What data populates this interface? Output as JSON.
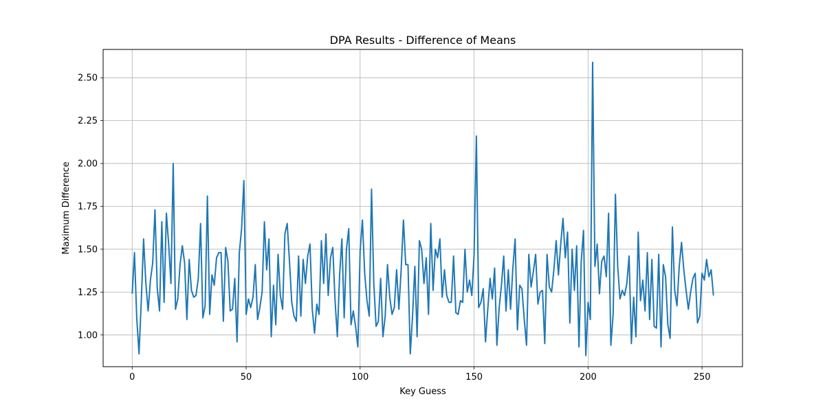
{
  "chart_data": {
    "type": "line",
    "title": "DPA Results - Difference of Means",
    "xlabel": "Key Guess",
    "ylabel": "Maximum Difference",
    "xlim": [
      -12.75,
      267.75
    ],
    "ylim": [
      0.815,
      2.665
    ],
    "xticks": [
      0,
      50,
      100,
      150,
      200,
      250
    ],
    "yticks": [
      1.0,
      1.25,
      1.5,
      1.75,
      2.0,
      2.25,
      2.5
    ],
    "xtick_labels": [
      "0",
      "50",
      "100",
      "150",
      "200",
      "250"
    ],
    "ytick_labels": [
      "1.00",
      "1.25",
      "1.50",
      "1.75",
      "2.00",
      "2.25",
      "2.50"
    ],
    "grid": true,
    "series": [
      {
        "color": "#1f77b4",
        "x_start": 0,
        "values": [
          1.24,
          1.48,
          1.1,
          0.89,
          1.2,
          1.56,
          1.3,
          1.14,
          1.32,
          1.42,
          1.73,
          1.27,
          1.14,
          1.66,
          1.19,
          1.71,
          1.53,
          1.3,
          2.0,
          1.15,
          1.21,
          1.41,
          1.52,
          1.42,
          1.09,
          1.44,
          1.26,
          1.22,
          1.23,
          1.33,
          1.65,
          1.1,
          1.17,
          1.81,
          1.12,
          1.35,
          1.29,
          1.45,
          1.48,
          1.48,
          1.08,
          1.51,
          1.43,
          1.14,
          1.15,
          1.33,
          0.96,
          1.48,
          1.62,
          1.9,
          1.12,
          1.21,
          1.16,
          1.22,
          1.41,
          1.09,
          1.16,
          1.25,
          1.66,
          1.38,
          1.56,
          0.99,
          1.29,
          1.06,
          1.47,
          1.23,
          1.15,
          1.59,
          1.65,
          1.43,
          1.19,
          1.11,
          1.08,
          1.46,
          1.11,
          1.44,
          1.3,
          1.46,
          1.53,
          1.15,
          1.01,
          1.18,
          1.12,
          1.55,
          1.3,
          1.59,
          1.23,
          1.45,
          1.51,
          1.2,
          0.99,
          1.35,
          1.56,
          1.1,
          1.5,
          1.62,
          1.06,
          1.14,
          1.05,
          0.93,
          1.49,
          1.67,
          1.36,
          1.2,
          1.11,
          1.85,
          1.3,
          1.05,
          1.08,
          1.33,
          0.99,
          1.11,
          1.41,
          1.22,
          1.12,
          1.16,
          1.38,
          1.15,
          1.38,
          1.67,
          1.41,
          1.41,
          0.89,
          1.11,
          1.4,
          0.99,
          1.55,
          1.5,
          1.3,
          1.45,
          1.12,
          1.65,
          1.26,
          1.5,
          1.45,
          1.56,
          1.22,
          1.38,
          1.23,
          1.19,
          1.19,
          1.46,
          1.13,
          1.12,
          1.2,
          1.19,
          1.5,
          1.25,
          1.32,
          1.23,
          1.47,
          2.16,
          1.16,
          1.19,
          1.27,
          0.96,
          1.15,
          1.33,
          1.21,
          1.39,
          0.94,
          1.16,
          1.29,
          1.46,
          1.14,
          1.38,
          1.15,
          1.39,
          1.56,
          1.03,
          1.29,
          1.27,
          1.09,
          0.94,
          1.47,
          1.28,
          1.37,
          1.47,
          1.18,
          1.25,
          1.26,
          0.95,
          1.47,
          1.28,
          1.25,
          1.38,
          1.55,
          1.35,
          1.53,
          1.68,
          1.45,
          1.6,
          1.07,
          1.5,
          1.26,
          1.52,
          0.93,
          1.43,
          1.61,
          0.88,
          1.19,
          1.09,
          2.59,
          1.4,
          1.53,
          1.24,
          1.43,
          1.46,
          1.34,
          1.71,
          0.94,
          1.12,
          1.82,
          1.4,
          1.21,
          1.26,
          1.23,
          1.3,
          1.46,
          0.95,
          1.22,
          0.99,
          1.6,
          1.2,
          1.32,
          1.14,
          1.48,
          1.09,
          1.44,
          1.05,
          1.04,
          1.47,
          0.93,
          1.41,
          1.34,
          1.06,
          0.98,
          1.63,
          1.26,
          1.17,
          1.4,
          1.54,
          1.38,
          1.26,
          1.15,
          1.25,
          1.33,
          1.36,
          1.07,
          1.11,
          1.36,
          1.32,
          1.44,
          1.34,
          1.38,
          1.23
        ]
      }
    ]
  }
}
